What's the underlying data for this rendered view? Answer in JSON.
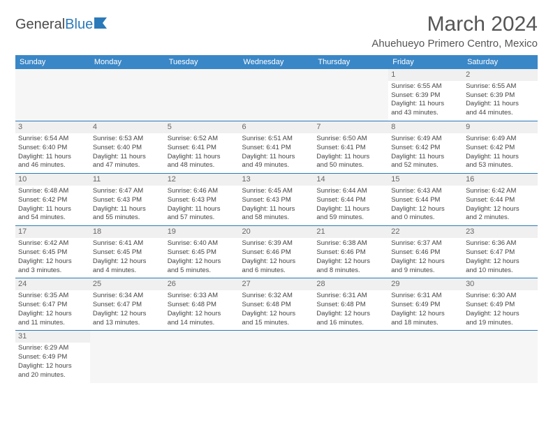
{
  "logo": {
    "text1": "General",
    "text2": "Blue"
  },
  "header": {
    "month_title": "March 2024",
    "location": "Ahuehueyo Primero Centro, Mexico"
  },
  "colors": {
    "header_bg": "#3a87c7",
    "border": "#2a7ab9",
    "text": "#444444"
  },
  "day_headers": [
    "Sunday",
    "Monday",
    "Tuesday",
    "Wednesday",
    "Thursday",
    "Friday",
    "Saturday"
  ],
  "weeks": [
    [
      null,
      null,
      null,
      null,
      null,
      {
        "n": "1",
        "sr": "Sunrise: 6:55 AM",
        "ss": "Sunset: 6:39 PM",
        "d1": "Daylight: 11 hours",
        "d2": "and 43 minutes."
      },
      {
        "n": "2",
        "sr": "Sunrise: 6:55 AM",
        "ss": "Sunset: 6:39 PM",
        "d1": "Daylight: 11 hours",
        "d2": "and 44 minutes."
      }
    ],
    [
      {
        "n": "3",
        "sr": "Sunrise: 6:54 AM",
        "ss": "Sunset: 6:40 PM",
        "d1": "Daylight: 11 hours",
        "d2": "and 46 minutes."
      },
      {
        "n": "4",
        "sr": "Sunrise: 6:53 AM",
        "ss": "Sunset: 6:40 PM",
        "d1": "Daylight: 11 hours",
        "d2": "and 47 minutes."
      },
      {
        "n": "5",
        "sr": "Sunrise: 6:52 AM",
        "ss": "Sunset: 6:41 PM",
        "d1": "Daylight: 11 hours",
        "d2": "and 48 minutes."
      },
      {
        "n": "6",
        "sr": "Sunrise: 6:51 AM",
        "ss": "Sunset: 6:41 PM",
        "d1": "Daylight: 11 hours",
        "d2": "and 49 minutes."
      },
      {
        "n": "7",
        "sr": "Sunrise: 6:50 AM",
        "ss": "Sunset: 6:41 PM",
        "d1": "Daylight: 11 hours",
        "d2": "and 50 minutes."
      },
      {
        "n": "8",
        "sr": "Sunrise: 6:49 AM",
        "ss": "Sunset: 6:42 PM",
        "d1": "Daylight: 11 hours",
        "d2": "and 52 minutes."
      },
      {
        "n": "9",
        "sr": "Sunrise: 6:49 AM",
        "ss": "Sunset: 6:42 PM",
        "d1": "Daylight: 11 hours",
        "d2": "and 53 minutes."
      }
    ],
    [
      {
        "n": "10",
        "sr": "Sunrise: 6:48 AM",
        "ss": "Sunset: 6:42 PM",
        "d1": "Daylight: 11 hours",
        "d2": "and 54 minutes."
      },
      {
        "n": "11",
        "sr": "Sunrise: 6:47 AM",
        "ss": "Sunset: 6:43 PM",
        "d1": "Daylight: 11 hours",
        "d2": "and 55 minutes."
      },
      {
        "n": "12",
        "sr": "Sunrise: 6:46 AM",
        "ss": "Sunset: 6:43 PM",
        "d1": "Daylight: 11 hours",
        "d2": "and 57 minutes."
      },
      {
        "n": "13",
        "sr": "Sunrise: 6:45 AM",
        "ss": "Sunset: 6:43 PM",
        "d1": "Daylight: 11 hours",
        "d2": "and 58 minutes."
      },
      {
        "n": "14",
        "sr": "Sunrise: 6:44 AM",
        "ss": "Sunset: 6:44 PM",
        "d1": "Daylight: 11 hours",
        "d2": "and 59 minutes."
      },
      {
        "n": "15",
        "sr": "Sunrise: 6:43 AM",
        "ss": "Sunset: 6:44 PM",
        "d1": "Daylight: 12 hours",
        "d2": "and 0 minutes."
      },
      {
        "n": "16",
        "sr": "Sunrise: 6:42 AM",
        "ss": "Sunset: 6:44 PM",
        "d1": "Daylight: 12 hours",
        "d2": "and 2 minutes."
      }
    ],
    [
      {
        "n": "17",
        "sr": "Sunrise: 6:42 AM",
        "ss": "Sunset: 6:45 PM",
        "d1": "Daylight: 12 hours",
        "d2": "and 3 minutes."
      },
      {
        "n": "18",
        "sr": "Sunrise: 6:41 AM",
        "ss": "Sunset: 6:45 PM",
        "d1": "Daylight: 12 hours",
        "d2": "and 4 minutes."
      },
      {
        "n": "19",
        "sr": "Sunrise: 6:40 AM",
        "ss": "Sunset: 6:45 PM",
        "d1": "Daylight: 12 hours",
        "d2": "and 5 minutes."
      },
      {
        "n": "20",
        "sr": "Sunrise: 6:39 AM",
        "ss": "Sunset: 6:46 PM",
        "d1": "Daylight: 12 hours",
        "d2": "and 6 minutes."
      },
      {
        "n": "21",
        "sr": "Sunrise: 6:38 AM",
        "ss": "Sunset: 6:46 PM",
        "d1": "Daylight: 12 hours",
        "d2": "and 8 minutes."
      },
      {
        "n": "22",
        "sr": "Sunrise: 6:37 AM",
        "ss": "Sunset: 6:46 PM",
        "d1": "Daylight: 12 hours",
        "d2": "and 9 minutes."
      },
      {
        "n": "23",
        "sr": "Sunrise: 6:36 AM",
        "ss": "Sunset: 6:47 PM",
        "d1": "Daylight: 12 hours",
        "d2": "and 10 minutes."
      }
    ],
    [
      {
        "n": "24",
        "sr": "Sunrise: 6:35 AM",
        "ss": "Sunset: 6:47 PM",
        "d1": "Daylight: 12 hours",
        "d2": "and 11 minutes."
      },
      {
        "n": "25",
        "sr": "Sunrise: 6:34 AM",
        "ss": "Sunset: 6:47 PM",
        "d1": "Daylight: 12 hours",
        "d2": "and 13 minutes."
      },
      {
        "n": "26",
        "sr": "Sunrise: 6:33 AM",
        "ss": "Sunset: 6:48 PM",
        "d1": "Daylight: 12 hours",
        "d2": "and 14 minutes."
      },
      {
        "n": "27",
        "sr": "Sunrise: 6:32 AM",
        "ss": "Sunset: 6:48 PM",
        "d1": "Daylight: 12 hours",
        "d2": "and 15 minutes."
      },
      {
        "n": "28",
        "sr": "Sunrise: 6:31 AM",
        "ss": "Sunset: 6:48 PM",
        "d1": "Daylight: 12 hours",
        "d2": "and 16 minutes."
      },
      {
        "n": "29",
        "sr": "Sunrise: 6:31 AM",
        "ss": "Sunset: 6:49 PM",
        "d1": "Daylight: 12 hours",
        "d2": "and 18 minutes."
      },
      {
        "n": "30",
        "sr": "Sunrise: 6:30 AM",
        "ss": "Sunset: 6:49 PM",
        "d1": "Daylight: 12 hours",
        "d2": "and 19 minutes."
      }
    ],
    [
      {
        "n": "31",
        "sr": "Sunrise: 6:29 AM",
        "ss": "Sunset: 6:49 PM",
        "d1": "Daylight: 12 hours",
        "d2": "and 20 minutes."
      },
      null,
      null,
      null,
      null,
      null,
      null
    ]
  ]
}
